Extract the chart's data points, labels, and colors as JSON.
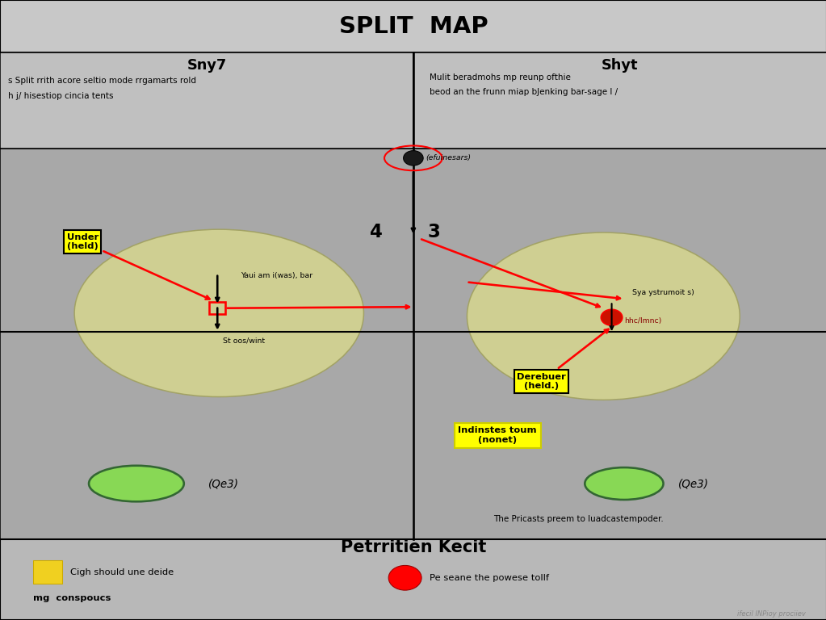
{
  "title": "SPLIT  MAP",
  "bg_color": "#a8a8a8",
  "title_bg": "#c8c8c8",
  "header_bg": "#c0c0c0",
  "main_bg": "#a8a8a8",
  "legend_bg": "#b8b8b8",
  "left_panel_title": "Sny7",
  "left_panel_desc1": "s Split rrith acore seltio mode rrgamarts rold",
  "left_panel_desc2": "h j/ hisestiop cincia tents",
  "right_panel_title": "Shyt",
  "right_panel_desc1": "Mulit beradmohs mp reunp ofthie",
  "right_panel_desc2": "beod an the frunn miap bJenking bar-sage l /",
  "score_text": "4|3",
  "left_zone_color": "#d4d490",
  "right_zone_color": "#d4d490",
  "green_ellipse_color": "#88d855",
  "green_ellipse_edge": "#336633",
  "left_defender_label": "Under\n(held)",
  "left_zone_label": "Yaui am i(was), bar",
  "left_zone_sublabel": "St oos/wint",
  "right_zone_label": "Sya ystrumoit s)",
  "right_zone_sublabel": "hhc/lmnc)",
  "right_defender_label": "Derebuer\n(held.)",
  "bottom_label": "Indinstes toum\n(nonet)",
  "caption": "The Pricasts preem to luadcastempoder.",
  "efuinesars_label": "(efuinesars)",
  "legend_title": "Petrritien Kecit",
  "legend1_text": "Cigh should une deide",
  "legend2_text": "mg  conspoucs",
  "legend3_text": "Pe seane the powese tollf",
  "watermark": "ifecil INPioy prociiev",
  "fig_w": 13.65,
  "fig_h": 10.24
}
